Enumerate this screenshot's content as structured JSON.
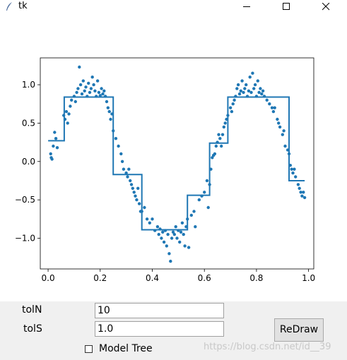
{
  "window": {
    "title": "tk"
  },
  "controls": {
    "tolN_label": "tolN",
    "tolN_value": "10",
    "tolS_label": "tolS",
    "tolS_value": "1.0",
    "redraw_label": "ReDraw",
    "model_tree_label": "Model Tree",
    "model_tree_checked": false
  },
  "watermark": "https://blog.csdn.net/id__39",
  "chart_data": {
    "type": "scatter",
    "xlim": [
      -0.03,
      1.02
    ],
    "ylim": [
      -1.4,
      1.35
    ],
    "xticks": [
      0.0,
      0.2,
      0.4,
      0.6,
      0.8,
      1.0
    ],
    "xtick_labels": [
      "0.0",
      "0.2",
      "0.4",
      "0.6",
      "0.8",
      "1.0"
    ],
    "yticks": [
      -1.0,
      -0.5,
      0.0,
      0.5,
      1.0
    ],
    "ytick_labels": [
      "−1.0",
      "−0.5",
      "0.0",
      "0.5",
      "1.0"
    ],
    "color": "#1f77b4",
    "points": [
      [
        0.01,
        0.1
      ],
      [
        0.012,
        0.05
      ],
      [
        0.015,
        0.03
      ],
      [
        0.02,
        0.2
      ],
      [
        0.025,
        0.38
      ],
      [
        0.03,
        0.3
      ],
      [
        0.035,
        0.18
      ],
      [
        0.06,
        0.6
      ],
      [
        0.065,
        0.55
      ],
      [
        0.07,
        0.65
      ],
      [
        0.075,
        0.5
      ],
      [
        0.08,
        0.62
      ],
      [
        0.085,
        0.72
      ],
      [
        0.09,
        0.8
      ],
      [
        0.1,
        0.85
      ],
      [
        0.105,
        0.78
      ],
      [
        0.11,
        0.9
      ],
      [
        0.115,
        0.95
      ],
      [
        0.12,
        1.23
      ],
      [
        0.125,
        1.0
      ],
      [
        0.13,
        0.88
      ],
      [
        0.135,
        1.05
      ],
      [
        0.14,
        0.92
      ],
      [
        0.145,
        0.97
      ],
      [
        0.15,
        0.85
      ],
      [
        0.155,
        1.02
      ],
      [
        0.16,
        0.9
      ],
      [
        0.165,
        0.95
      ],
      [
        0.17,
        1.1
      ],
      [
        0.175,
        1.0
      ],
      [
        0.18,
        0.92
      ],
      [
        0.185,
        0.85
      ],
      [
        0.19,
        1.05
      ],
      [
        0.195,
        0.9
      ],
      [
        0.2,
        0.86
      ],
      [
        0.205,
        0.95
      ],
      [
        0.21,
        0.88
      ],
      [
        0.215,
        0.92
      ],
      [
        0.22,
        0.85
      ],
      [
        0.225,
        0.78
      ],
      [
        0.23,
        0.7
      ],
      [
        0.235,
        0.65
      ],
      [
        0.24,
        0.55
      ],
      [
        0.245,
        0.62
      ],
      [
        0.25,
        0.4
      ],
      [
        0.26,
        0.3
      ],
      [
        0.27,
        0.2
      ],
      [
        0.28,
        0.1
      ],
      [
        0.285,
        0.0
      ],
      [
        0.29,
        -0.1
      ],
      [
        0.3,
        -0.15
      ],
      [
        0.305,
        -0.2
      ],
      [
        0.31,
        -0.1
      ],
      [
        0.315,
        -0.25
      ],
      [
        0.32,
        -0.3
      ],
      [
        0.325,
        -0.35
      ],
      [
        0.33,
        -0.4
      ],
      [
        0.335,
        -0.45
      ],
      [
        0.34,
        -0.5
      ],
      [
        0.345,
        -0.35
      ],
      [
        0.35,
        -0.55
      ],
      [
        0.355,
        -0.65
      ],
      [
        0.36,
        -0.65
      ],
      [
        0.37,
        -0.6
      ],
      [
        0.38,
        -0.75
      ],
      [
        0.39,
        -0.8
      ],
      [
        0.4,
        -0.75
      ],
      [
        0.41,
        -0.9
      ],
      [
        0.42,
        -0.85
      ],
      [
        0.425,
        -0.95
      ],
      [
        0.43,
        -0.88
      ],
      [
        0.435,
        -1.0
      ],
      [
        0.44,
        -0.92
      ],
      [
        0.445,
        -1.05
      ],
      [
        0.45,
        -0.9
      ],
      [
        0.455,
        -1.1
      ],
      [
        0.46,
        -0.95
      ],
      [
        0.465,
        -1.2
      ],
      [
        0.47,
        -1.3
      ],
      [
        0.475,
        -1.0
      ],
      [
        0.48,
        -0.92
      ],
      [
        0.485,
        -0.95
      ],
      [
        0.49,
        -0.85
      ],
      [
        0.495,
        -1.0
      ],
      [
        0.5,
        -0.9
      ],
      [
        0.505,
        -1.05
      ],
      [
        0.51,
        -0.92
      ],
      [
        0.515,
        -0.8
      ],
      [
        0.52,
        -0.95
      ],
      [
        0.525,
        -1.1
      ],
      [
        0.53,
        -0.85
      ],
      [
        0.535,
        -0.75
      ],
      [
        0.54,
        -1.12
      ],
      [
        0.55,
        -0.7
      ],
      [
        0.56,
        -0.65
      ],
      [
        0.565,
        -0.85
      ],
      [
        0.58,
        -0.5
      ],
      [
        0.59,
        -0.45
      ],
      [
        0.6,
        -0.4
      ],
      [
        0.61,
        -0.25
      ],
      [
        0.615,
        -0.6
      ],
      [
        0.62,
        -0.3
      ],
      [
        0.625,
        -0.1
      ],
      [
        0.63,
        0.05
      ],
      [
        0.635,
        0.08
      ],
      [
        0.64,
        0.1
      ],
      [
        0.645,
        0.2
      ],
      [
        0.65,
        0.25
      ],
      [
        0.655,
        0.35
      ],
      [
        0.66,
        0.3
      ],
      [
        0.665,
        0.2
      ],
      [
        0.67,
        0.35
      ],
      [
        0.675,
        0.45
      ],
      [
        0.68,
        0.5
      ],
      [
        0.685,
        0.55
      ],
      [
        0.69,
        0.6
      ],
      [
        0.7,
        0.7
      ],
      [
        0.705,
        0.65
      ],
      [
        0.71,
        0.75
      ],
      [
        0.715,
        0.8
      ],
      [
        0.72,
        0.85
      ],
      [
        0.725,
        0.95
      ],
      [
        0.73,
        1.0
      ],
      [
        0.735,
        0.88
      ],
      [
        0.74,
        0.92
      ],
      [
        0.745,
        1.05
      ],
      [
        0.75,
        0.9
      ],
      [
        0.755,
        0.95
      ],
      [
        0.76,
        1.0
      ],
      [
        0.765,
        0.85
      ],
      [
        0.77,
        0.92
      ],
      [
        0.775,
        1.1
      ],
      [
        0.78,
        0.9
      ],
      [
        0.785,
        1.15
      ],
      [
        0.79,
        0.95
      ],
      [
        0.795,
        1.0
      ],
      [
        0.8,
        0.85
      ],
      [
        0.805,
        1.05
      ],
      [
        0.81,
        0.9
      ],
      [
        0.815,
        0.95
      ],
      [
        0.82,
        0.88
      ],
      [
        0.825,
        0.92
      ],
      [
        0.83,
        0.85
      ],
      [
        0.84,
        0.8
      ],
      [
        0.85,
        0.75
      ],
      [
        0.86,
        0.7
      ],
      [
        0.865,
        0.65
      ],
      [
        0.87,
        0.7
      ],
      [
        0.88,
        0.55
      ],
      [
        0.885,
        0.5
      ],
      [
        0.89,
        0.45
      ],
      [
        0.9,
        0.35
      ],
      [
        0.905,
        0.4
      ],
      [
        0.91,
        0.2
      ],
      [
        0.92,
        0.15
      ],
      [
        0.925,
        0.1
      ],
      [
        0.93,
        -0.05
      ],
      [
        0.935,
        -0.1
      ],
      [
        0.94,
        -0.15
      ],
      [
        0.945,
        -0.1
      ],
      [
        0.95,
        -0.2
      ],
      [
        0.96,
        -0.3
      ],
      [
        0.965,
        -0.35
      ],
      [
        0.97,
        -0.4
      ],
      [
        0.975,
        -0.45
      ],
      [
        0.98,
        -0.4
      ],
      [
        0.985,
        -0.47
      ]
    ],
    "step_line": [
      [
        0.0,
        0.27
      ],
      [
        0.062,
        0.27
      ],
      [
        0.062,
        0.84
      ],
      [
        0.25,
        0.84
      ],
      [
        0.25,
        -0.17
      ],
      [
        0.36,
        -0.17
      ],
      [
        0.36,
        -0.89
      ],
      [
        0.535,
        -0.89
      ],
      [
        0.535,
        -0.44
      ],
      [
        0.62,
        -0.44
      ],
      [
        0.62,
        0.24
      ],
      [
        0.69,
        0.24
      ],
      [
        0.69,
        0.84
      ],
      [
        0.925,
        0.84
      ],
      [
        0.925,
        -0.25
      ],
      [
        0.985,
        -0.25
      ]
    ]
  }
}
